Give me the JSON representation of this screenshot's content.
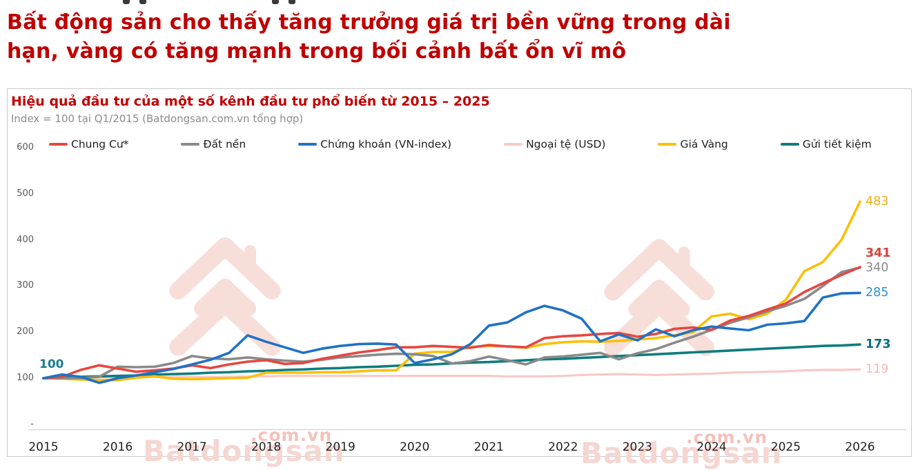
{
  "header": {
    "title_line1": "Bất động sản cho thấy tăng trưởng giá trị bền vững trong dài",
    "title_line2": "hạn, vàng có tăng mạnh trong bối cảnh bất ổn vĩ mô"
  },
  "panel": {
    "title": "Hiệu quả đầu tư của một số kênh đầu tư phổ biến từ 2015 – 2025",
    "subtitle": "Index = 100 tại Q1/2015 (Batdongsan.com.vn tổng hợp)"
  },
  "watermark": {
    "brand": "Batdongsan",
    "suffix": ".com.vn"
  },
  "start_annotation": "100",
  "chart_data": {
    "type": "line",
    "title": "Hiệu quả đầu tư của một số kênh đầu tư phổ biến từ 2015 – 2025",
    "subtitle": "Index = 100 tại Q1/2015 (Batdongsan.com.vn tổng hợp)",
    "x_unit": "quarter",
    "x_start": "Q1/2015",
    "x_end": "Q1/2026",
    "x_tick_labels": [
      "2015",
      "2016",
      "2017",
      "2018",
      "2019",
      "2020",
      "2021",
      "2022",
      "2023",
      "2024",
      "2025",
      "2026"
    ],
    "y_tick_labels": [
      "600",
      "500",
      "400",
      "300",
      "200",
      "100",
      "-"
    ],
    "y_tick_values": [
      600,
      500,
      400,
      300,
      200,
      100,
      0
    ],
    "ylim": [
      0,
      600
    ],
    "grid": false,
    "legend_position": "top",
    "series": [
      {
        "key": "chung-cu",
        "name": "Chung Cư*",
        "color": "#e8463f",
        "end_label": "341",
        "end_label_color": "#d7423a",
        "end_label_bold": true,
        "values": [
          100,
          103,
          118,
          128,
          121,
          114,
          117,
          121,
          128,
          122,
          130,
          136,
          139,
          131,
          133,
          142,
          149,
          156,
          161,
          167,
          167,
          170,
          168,
          166,
          172,
          169,
          167,
          187,
          191,
          193,
          196,
          198,
          190,
          196,
          207,
          210,
          205,
          225,
          235,
          249,
          262,
          287,
          306,
          324,
          341
        ]
      },
      {
        "key": "dat-nen",
        "name": "Đất nền",
        "color": "#8a8a8a",
        "end_label": "340",
        "end_label_color": "#8a8a8a",
        "end_label_bold": false,
        "values": [
          100,
          100,
          100,
          103,
          125,
          124,
          125,
          133,
          148,
          143,
          141,
          145,
          141,
          138,
          136,
          140,
          145,
          148,
          151,
          153,
          152,
          148,
          132,
          137,
          147,
          139,
          130,
          145,
          147,
          151,
          155,
          141,
          154,
          163,
          177,
          190,
          205,
          220,
          232,
          245,
          257,
          272,
          300,
          330,
          340
        ]
      },
      {
        "key": "chung-khoan",
        "name": "Chứng khoán (VN-index)",
        "color": "#1f72c5",
        "end_label": "285",
        "end_label_color": "#2e90d6",
        "end_label_bold": false,
        "values": [
          100,
          108,
          103,
          90,
          100,
          106,
          113,
          120,
          130,
          140,
          155,
          193,
          179,
          167,
          155,
          164,
          170,
          174,
          175,
          173,
          133,
          141,
          152,
          174,
          214,
          221,
          243,
          257,
          247,
          229,
          180,
          195,
          182,
          206,
          191,
          204,
          212,
          208,
          204,
          216,
          219,
          224,
          275,
          284,
          285
        ]
      },
      {
        "key": "ngoai-te",
        "name": "Ngoại tệ (USD)",
        "color": "#f8c9c4",
        "end_label": "119",
        "end_label_color": "#f5b9b3",
        "end_label_bold": false,
        "values": [
          100,
          100,
          101,
          102,
          102,
          102,
          103,
          103,
          103,
          103,
          103,
          104,
          104,
          105,
          105,
          105,
          105,
          105,
          105,
          105,
          105,
          105,
          105,
          105,
          105,
          104,
          104,
          104,
          105,
          107,
          108,
          109,
          108,
          107,
          108,
          109,
          110,
          112,
          113,
          114,
          115,
          117,
          118,
          118,
          119
        ]
      },
      {
        "key": "gia-vang",
        "name": "Giá Vàng",
        "color": "#fcbf0a",
        "end_label": "483",
        "end_label_color": "#f2ac14",
        "end_label_bold": false,
        "values": [
          100,
          99,
          97,
          96,
          96,
          101,
          104,
          99,
          98,
          99,
          100,
          101,
          112,
          112,
          112,
          113,
          113,
          115,
          117,
          117,
          153,
          157,
          157,
          168,
          170,
          169,
          166,
          174,
          178,
          180,
          179,
          181,
          184,
          187,
          193,
          200,
          234,
          240,
          228,
          240,
          270,
          332,
          352,
          400,
          483
        ]
      },
      {
        "key": "gui-tiet-kiem",
        "name": "Gửi tiết kiệm",
        "color": "#0e7d7d",
        "end_label": "173",
        "end_label_color": "#0d6e7a",
        "end_label_bold": true,
        "values": [
          100,
          101,
          103,
          104,
          105,
          106,
          108,
          109,
          110,
          112,
          113,
          115,
          116,
          118,
          119,
          121,
          122,
          124,
          125,
          127,
          129,
          130,
          132,
          134,
          135,
          137,
          139,
          141,
          142,
          144,
          146,
          148,
          150,
          152,
          154,
          156,
          158,
          160,
          162,
          164,
          166,
          168,
          170,
          171,
          173
        ]
      }
    ]
  }
}
